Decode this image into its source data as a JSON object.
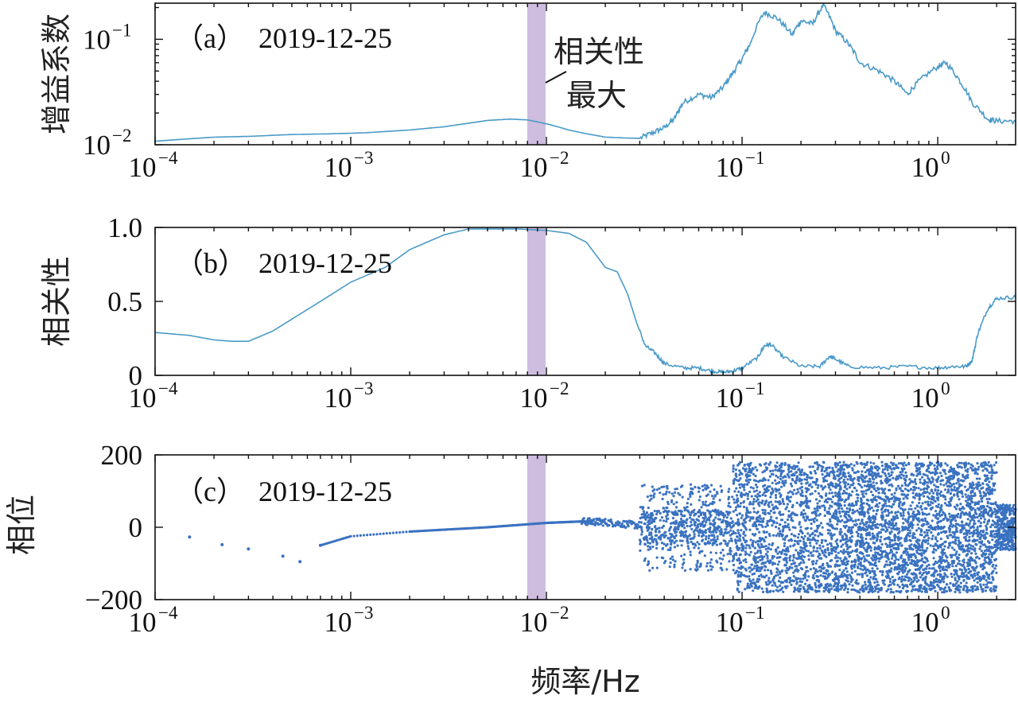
{
  "chart_data": [
    {
      "panel": "a",
      "type": "line",
      "panel_label": "（a）",
      "date_label": "2019-12-25",
      "ylabel": "增益系数",
      "xscale": "log",
      "yscale": "log",
      "xlim": [
        0.0001,
        2.5
      ],
      "ylim": [
        0.01,
        0.22
      ],
      "xticks": [
        0.0001,
        0.001,
        0.01,
        0.1,
        1
      ],
      "xtick_labels": [
        {
          "base": "10",
          "exp": "−4"
        },
        {
          "base": "10",
          "exp": "−3"
        },
        {
          "base": "10",
          "exp": "−2"
        },
        {
          "base": "10",
          "exp": "−1"
        },
        {
          "base": "10",
          "exp": "0"
        }
      ],
      "yticks": [
        0.01,
        0.1
      ],
      "ytick_labels": [
        {
          "base": "10",
          "exp": "−2"
        },
        {
          "base": "10",
          "exp": "−1"
        }
      ],
      "series": [
        {
          "color": "#4a9ac8",
          "x": [
            0.0001,
            0.0002,
            0.0003,
            0.0005,
            0.0008,
            0.0012,
            0.002,
            0.003,
            0.004,
            0.005,
            0.0065,
            0.008,
            0.01,
            0.013,
            0.016,
            0.02,
            0.025,
            0.03,
            0.035,
            0.04,
            0.045,
            0.05,
            0.06,
            0.07,
            0.08,
            0.09,
            0.1,
            0.11,
            0.13,
            0.15,
            0.18,
            0.2,
            0.23,
            0.26,
            0.3,
            0.35,
            0.4,
            0.5,
            0.6,
            0.7,
            0.8,
            1.0,
            1.1,
            1.3,
            1.5,
            1.8,
            2.0,
            2.5
          ],
          "y": [
            0.0108,
            0.0118,
            0.012,
            0.0125,
            0.0127,
            0.013,
            0.0138,
            0.0148,
            0.016,
            0.017,
            0.0175,
            0.0172,
            0.0158,
            0.0138,
            0.0127,
            0.0118,
            0.0116,
            0.0115,
            0.013,
            0.0145,
            0.0175,
            0.025,
            0.03,
            0.028,
            0.035,
            0.048,
            0.065,
            0.09,
            0.18,
            0.16,
            0.11,
            0.15,
            0.14,
            0.21,
            0.12,
            0.09,
            0.06,
            0.05,
            0.04,
            0.03,
            0.04,
            0.055,
            0.06,
            0.04,
            0.025,
            0.0175,
            0.0168,
            0.0168
          ]
        }
      ],
      "highlight": {
        "x_range": [
          0.008,
          0.01
        ],
        "color": "#b9a3cf"
      },
      "annotation": {
        "lines": [
          "相关性",
          "最大"
        ]
      }
    },
    {
      "panel": "b",
      "type": "line",
      "panel_label": "（b）",
      "date_label": "2019-12-25",
      "ylabel": "相关性",
      "xscale": "log",
      "xlim": [
        0.0001,
        2.5
      ],
      "ylim": [
        0,
        1.0
      ],
      "xticks": [
        0.0001,
        0.001,
        0.01,
        0.1,
        1
      ],
      "xtick_labels": [
        {
          "base": "10",
          "exp": "−4"
        },
        {
          "base": "10",
          "exp": "−3"
        },
        {
          "base": "10",
          "exp": "−2"
        },
        {
          "base": "10",
          "exp": "−1"
        },
        {
          "base": "10",
          "exp": "0"
        }
      ],
      "yticks": [
        0,
        0.5,
        1.0
      ],
      "ytick_labels": [
        "0",
        "0.5",
        "1.0"
      ],
      "series": [
        {
          "color": "#4a9ac8",
          "x": [
            0.0001,
            0.00015,
            0.0002,
            0.00025,
            0.0003,
            0.0004,
            0.0005,
            0.0007,
            0.001,
            0.0015,
            0.002,
            0.003,
            0.004,
            0.005,
            0.007,
            0.01,
            0.013,
            0.016,
            0.02,
            0.023,
            0.026,
            0.029,
            0.032,
            0.036,
            0.04,
            0.05,
            0.06,
            0.07,
            0.08,
            0.09,
            0.1,
            0.12,
            0.13,
            0.14,
            0.16,
            0.2,
            0.25,
            0.28,
            0.3,
            0.35,
            0.5,
            0.7,
            1.0,
            1.2,
            1.4,
            1.5,
            1.6,
            1.8,
            2.0,
            2.5
          ],
          "y": [
            0.29,
            0.27,
            0.24,
            0.23,
            0.23,
            0.3,
            0.38,
            0.5,
            0.63,
            0.73,
            0.85,
            0.95,
            0.99,
            0.99,
            0.99,
            0.98,
            0.96,
            0.9,
            0.73,
            0.7,
            0.55,
            0.35,
            0.2,
            0.15,
            0.08,
            0.05,
            0.05,
            0.03,
            0.02,
            0.03,
            0.05,
            0.12,
            0.2,
            0.21,
            0.13,
            0.06,
            0.06,
            0.13,
            0.11,
            0.06,
            0.05,
            0.06,
            0.05,
            0.06,
            0.06,
            0.1,
            0.28,
            0.45,
            0.52,
            0.53
          ]
        }
      ],
      "highlight": {
        "x_range": [
          0.008,
          0.01
        ],
        "color": "#b9a3cf"
      }
    },
    {
      "panel": "c",
      "type": "scatter",
      "panel_label": "（c）",
      "date_label": "2019-12-25",
      "ylabel": "相位",
      "xlabel": "频率/Hz",
      "xscale": "log",
      "xlim": [
        0.0001,
        2.5
      ],
      "ylim": [
        -200,
        200
      ],
      "xticks": [
        0.0001,
        0.001,
        0.01,
        0.1,
        1
      ],
      "xtick_labels": [
        {
          "base": "10",
          "exp": "−4"
        },
        {
          "base": "10",
          "exp": "−3"
        },
        {
          "base": "10",
          "exp": "−2"
        },
        {
          "base": "10",
          "exp": "−1"
        },
        {
          "base": "10",
          "exp": "0"
        }
      ],
      "yticks": [
        -200,
        0,
        200
      ],
      "ytick_labels": [
        "−200",
        "0",
        "200"
      ],
      "trend": {
        "x": [
          0.00015,
          0.00022,
          0.0003,
          0.00045,
          0.00055,
          0.0007,
          0.001,
          0.002,
          0.005,
          0.01,
          0.015,
          0.02,
          0.03
        ],
        "y": [
          -27,
          -48,
          -60,
          -80,
          -95,
          -50,
          -25,
          -12,
          0,
          12,
          16,
          14,
          5
        ]
      },
      "scatter_bands": [
        {
          "x_range": [
            0.03,
            0.09
          ],
          "y_range": [
            -120,
            120
          ]
        },
        {
          "x_range": [
            0.09,
            0.3
          ],
          "y_range": [
            -180,
            180
          ]
        },
        {
          "x_range": [
            0.3,
            2.5
          ],
          "y_range": [
            -180,
            180
          ]
        }
      ],
      "series": [
        {
          "color": "#3a72c0"
        }
      ],
      "highlight": {
        "x_range": [
          0.008,
          0.01
        ],
        "color": "#b9a3cf"
      }
    }
  ]
}
